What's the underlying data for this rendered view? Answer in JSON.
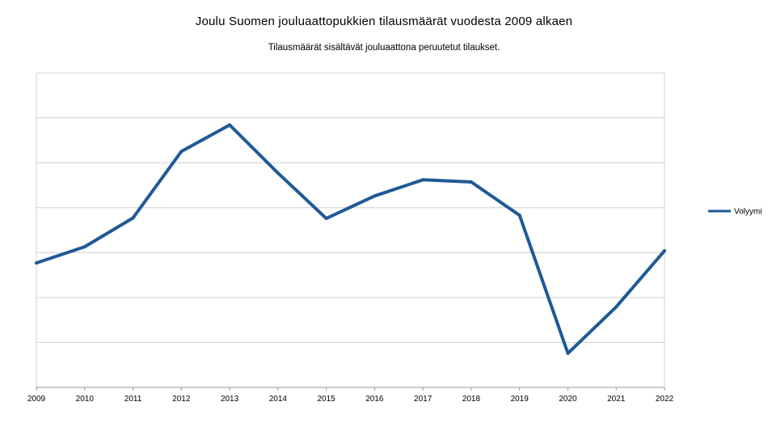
{
  "chart_data": {
    "type": "line",
    "title": "Joulu Suomen jouluaattopukkien tilausmäärät vuodesta 2009 alkaen",
    "subtitle": "Tilausmäärät sisältävät jouluaattona peruutetut tilaukset.",
    "xlabel": "",
    "ylabel": "",
    "x": [
      "2009",
      "2010",
      "2011",
      "2012",
      "2013",
      "2014",
      "2015",
      "2016",
      "2017",
      "2018",
      "2019",
      "2020",
      "2021",
      "2022"
    ],
    "series": [
      {
        "name": "Volyymi",
        "color": "#1f5a96",
        "values": [
          2.77,
          3.13,
          3.77,
          5.25,
          5.84,
          4.77,
          3.76,
          4.26,
          4.62,
          4.57,
          3.83,
          0.76,
          1.79,
          3.04
        ]
      }
    ],
    "ylim": [
      0,
      7
    ],
    "y_tick_labels_shown": false,
    "grid": true,
    "legend_position": "right"
  }
}
